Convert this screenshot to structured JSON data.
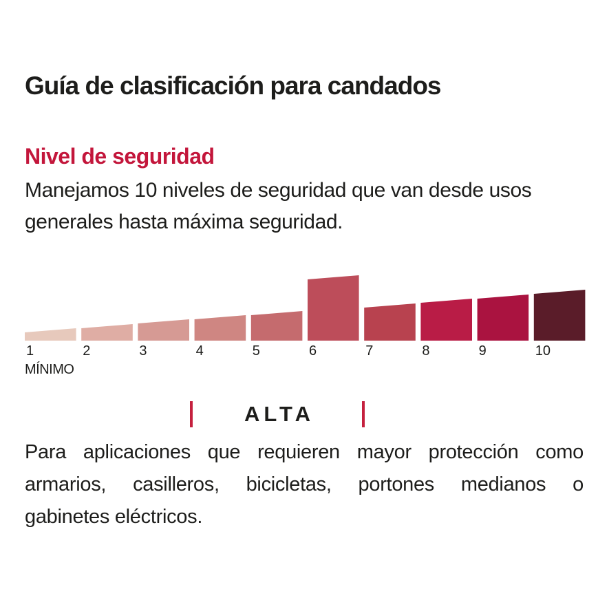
{
  "header": {
    "title": "Guía de clasificación para candados"
  },
  "section": {
    "title": "Nivel de seguridad",
    "intro_lines": [
      "Manejamos 10 niveles de seguridad que van desde usos",
      "generales hasta máxima seguridad."
    ]
  },
  "chart_data": {
    "type": "bar",
    "title": "Nivel de seguridad",
    "categories": [
      "1",
      "2",
      "3",
      "4",
      "5",
      "6",
      "7",
      "8",
      "9",
      "10"
    ],
    "values": [
      15,
      21,
      28,
      34,
      40,
      92,
      51,
      58,
      64,
      71
    ],
    "colors": [
      "#e7c9bc",
      "#dfada4",
      "#d69a94",
      "#cf8682",
      "#c56b6e",
      "#bd4d5a",
      "#b8424f",
      "#b91c46",
      "#aa1340",
      "#5a1c29"
    ],
    "highlighted_level": "6",
    "min_label": "MÍNIMO",
    "range_marker": {
      "label": "ALTA",
      "from_level": "4",
      "to_level": "6"
    },
    "xlabel": "",
    "ylabel": "",
    "axis_range": [
      "1",
      "10"
    ],
    "grid": "off",
    "legend": "none"
  },
  "outro": {
    "lines": [
      "Para aplicaciones que requieren mayor protección como",
      "armarios, casilleros, bicicletas, portones medianos o",
      "gabinetes eléctricos."
    ]
  },
  "colors": {
    "accent_red": "#c3163b",
    "tick_red": "#c5203e",
    "text_black": "#1d1d1b",
    "background": "#ffffff"
  }
}
